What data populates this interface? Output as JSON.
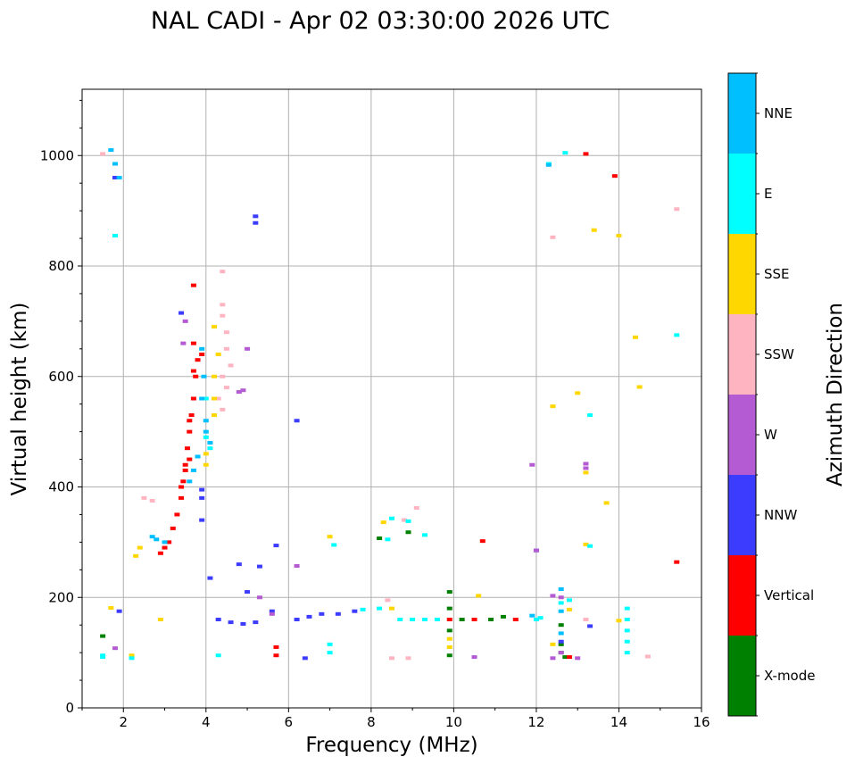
{
  "chart_data": {
    "type": "scatter",
    "title": "NAL CADI - Apr 02 03:30:00 2026 UTC",
    "xlabel": "Frequency (MHz)",
    "ylabel": "Virtual height (km)",
    "xlim": [
      1,
      16
    ],
    "ylim": [
      0,
      1120
    ],
    "xticks": [
      2,
      4,
      6,
      8,
      10,
      12,
      14,
      16
    ],
    "yticks": [
      0,
      200,
      400,
      600,
      800,
      1000
    ],
    "xtick_labels": [
      "2",
      "4",
      "6",
      "8",
      "10",
      "12",
      "14",
      "16"
    ],
    "ytick_labels": [
      "0",
      "200",
      "400",
      "600",
      "800",
      "1000"
    ],
    "grid": true,
    "colorbar": {
      "label": "Azimuth Direction",
      "categories": [
        {
          "name": "X-mode",
          "color": "#008000"
        },
        {
          "name": "Vertical",
          "color": "#ff0000"
        },
        {
          "name": "NNW",
          "color": "#3c3cff"
        },
        {
          "name": "W",
          "color": "#b45ad2"
        },
        {
          "name": "SSW",
          "color": "#ffb4c1"
        },
        {
          "name": "SSE",
          "color": "#ffd700"
        },
        {
          "name": "E",
          "color": "#00ffff"
        },
        {
          "name": "NNE",
          "color": "#00bfff"
        }
      ]
    },
    "series": [
      {
        "name": "X-mode",
        "points": [
          [
            9.9,
            210
          ],
          [
            9.9,
            180
          ],
          [
            9.9,
            140
          ],
          [
            9.9,
            95
          ],
          [
            10.2,
            160
          ],
          [
            10.9,
            160
          ],
          [
            11.2,
            165
          ],
          [
            12.6,
            115
          ],
          [
            12.6,
            100
          ],
          [
            12.7,
            92
          ],
          [
            12.6,
            150
          ],
          [
            8.9,
            318
          ],
          [
            8.2,
            307
          ],
          [
            1.5,
            130
          ]
        ]
      },
      {
        "name": "Vertical",
        "points": [
          [
            3.2,
            325
          ],
          [
            3.3,
            350
          ],
          [
            3.4,
            380
          ],
          [
            3.45,
            410
          ],
          [
            3.5,
            440
          ],
          [
            3.55,
            470
          ],
          [
            3.6,
            500
          ],
          [
            3.65,
            530
          ],
          [
            3.7,
            560
          ],
          [
            3.75,
            600
          ],
          [
            3.8,
            630
          ],
          [
            3.7,
            660
          ],
          [
            3.7,
            765
          ],
          [
            3.6,
            450
          ],
          [
            3.4,
            400
          ],
          [
            3.1,
            300
          ],
          [
            3.0,
            290
          ],
          [
            2.9,
            280
          ],
          [
            3.5,
            430
          ],
          [
            3.6,
            520
          ],
          [
            3.7,
            610
          ],
          [
            3.9,
            640
          ],
          [
            10.7,
            302
          ],
          [
            10.5,
            160
          ],
          [
            11.5,
            160
          ],
          [
            13.9,
            963
          ],
          [
            13.2,
            1003
          ],
          [
            15.4,
            264
          ],
          [
            5.7,
            110
          ],
          [
            5.7,
            95
          ],
          [
            12.8,
            92
          ],
          [
            9.9,
            160
          ]
        ]
      },
      {
        "name": "NNW",
        "points": [
          [
            6.2,
            160
          ],
          [
            6.5,
            165
          ],
          [
            7.2,
            170
          ],
          [
            7.6,
            175
          ],
          [
            4.3,
            160
          ],
          [
            4.6,
            155
          ],
          [
            4.9,
            152
          ],
          [
            5.2,
            155
          ],
          [
            5.6,
            175
          ],
          [
            6.8,
            170
          ],
          [
            3.4,
            715
          ],
          [
            3.9,
            395
          ],
          [
            3.9,
            380
          ],
          [
            3.9,
            340
          ],
          [
            4.1,
            235
          ],
          [
            4.8,
            260
          ],
          [
            5.0,
            210
          ],
          [
            5.7,
            294
          ],
          [
            6.2,
            520
          ],
          [
            5.2,
            890
          ],
          [
            5.2,
            878
          ],
          [
            12.6,
            120
          ],
          [
            13.3,
            148
          ],
          [
            12.0,
            285
          ],
          [
            6.4,
            90
          ],
          [
            1.8,
            960
          ],
          [
            5.3,
            256
          ],
          [
            1.9,
            175
          ]
        ]
      },
      {
        "name": "W",
        "points": [
          [
            3.45,
            660
          ],
          [
            3.5,
            700
          ],
          [
            5.0,
            650
          ],
          [
            4.8,
            572
          ],
          [
            13.2,
            442
          ],
          [
            13.2,
            434
          ],
          [
            12.6,
            100
          ],
          [
            12.6,
            200
          ],
          [
            1.8,
            108
          ],
          [
            10.5,
            92
          ],
          [
            13.0,
            90
          ],
          [
            12.4,
            90
          ],
          [
            6.2,
            257
          ],
          [
            5.6,
            170
          ],
          [
            12.4,
            203
          ],
          [
            11.9,
            440
          ],
          [
            12.0,
            285
          ],
          [
            5.3,
            200
          ],
          [
            4.9,
            575
          ]
        ]
      },
      {
        "name": "SSW",
        "points": [
          [
            4.4,
            730
          ],
          [
            4.4,
            710
          ],
          [
            4.5,
            680
          ],
          [
            4.5,
            650
          ],
          [
            4.6,
            620
          ],
          [
            4.4,
            600
          ],
          [
            4.5,
            580
          ],
          [
            4.3,
            560
          ],
          [
            4.4,
            540
          ],
          [
            2.5,
            380
          ],
          [
            2.7,
            375
          ],
          [
            9.1,
            362
          ],
          [
            8.8,
            340
          ],
          [
            8.5,
            90
          ],
          [
            8.9,
            90
          ],
          [
            12.4,
            852
          ],
          [
            15.4,
            903
          ],
          [
            13.2,
            160
          ],
          [
            14.7,
            93
          ],
          [
            4.4,
            790
          ],
          [
            8.4,
            195
          ],
          [
            1.5,
            1003
          ]
        ]
      },
      {
        "name": "SSE",
        "points": [
          [
            4.2,
            690
          ],
          [
            4.3,
            640
          ],
          [
            4.2,
            600
          ],
          [
            4.2,
            560
          ],
          [
            4.2,
            530
          ],
          [
            4.0,
            460
          ],
          [
            4.0,
            440
          ],
          [
            2.3,
            275
          ],
          [
            2.4,
            290
          ],
          [
            7.0,
            310
          ],
          [
            8.3,
            336
          ],
          [
            8.5,
            180
          ],
          [
            12.4,
            546
          ],
          [
            13.0,
            570
          ],
          [
            13.2,
            426
          ],
          [
            13.2,
            296
          ],
          [
            14.0,
            855
          ],
          [
            13.4,
            865
          ],
          [
            14.4,
            671
          ],
          [
            14.5,
            581
          ],
          [
            13.7,
            371
          ],
          [
            14.0,
            158
          ],
          [
            12.4,
            115
          ],
          [
            9.9,
            125
          ],
          [
            9.9,
            110
          ],
          [
            12.8,
            178
          ],
          [
            10.6,
            203
          ],
          [
            2.2,
            95
          ],
          [
            2.9,
            160
          ],
          [
            1.7,
            181
          ]
        ]
      },
      {
        "name": "E",
        "points": [
          [
            7.8,
            178
          ],
          [
            8.2,
            180
          ],
          [
            8.7,
            160
          ],
          [
            9.0,
            160
          ],
          [
            9.3,
            160
          ],
          [
            9.6,
            160
          ],
          [
            8.5,
            343
          ],
          [
            8.4,
            305
          ],
          [
            8.9,
            338
          ],
          [
            9.3,
            313
          ],
          [
            7.1,
            295
          ],
          [
            13.3,
            530
          ],
          [
            13.3,
            293
          ],
          [
            14.2,
            180
          ],
          [
            14.2,
            160
          ],
          [
            14.2,
            140
          ],
          [
            14.2,
            120
          ],
          [
            14.2,
            100
          ],
          [
            12.6,
            190
          ],
          [
            12.8,
            195
          ],
          [
            12.7,
            1005
          ],
          [
            12.3,
            985
          ],
          [
            15.4,
            675
          ],
          [
            4.0,
            560
          ],
          [
            4.0,
            490
          ],
          [
            4.1,
            470
          ],
          [
            1.8,
            855
          ],
          [
            7.0,
            115
          ],
          [
            7.0,
            100
          ],
          [
            2.2,
            90
          ],
          [
            12.1,
            163
          ],
          [
            12.0,
            160
          ],
          [
            4.3,
            95
          ],
          [
            1.5,
            95
          ],
          [
            1.5,
            92
          ]
        ]
      },
      {
        "name": "NNE",
        "points": [
          [
            3.9,
            650
          ],
          [
            3.95,
            600
          ],
          [
            3.9,
            560
          ],
          [
            4.0,
            520
          ],
          [
            4.0,
            500
          ],
          [
            4.1,
            480
          ],
          [
            3.8,
            455
          ],
          [
            3.7,
            430
          ],
          [
            12.6,
            215
          ],
          [
            12.6,
            175
          ],
          [
            12.6,
            135
          ],
          [
            11.9,
            167
          ],
          [
            12.3,
            983
          ],
          [
            1.9,
            960
          ],
          [
            1.8,
            985
          ],
          [
            1.7,
            1010
          ],
          [
            2.7,
            310
          ],
          [
            2.8,
            305
          ],
          [
            3.0,
            300
          ],
          [
            3.6,
            410
          ]
        ]
      }
    ]
  }
}
